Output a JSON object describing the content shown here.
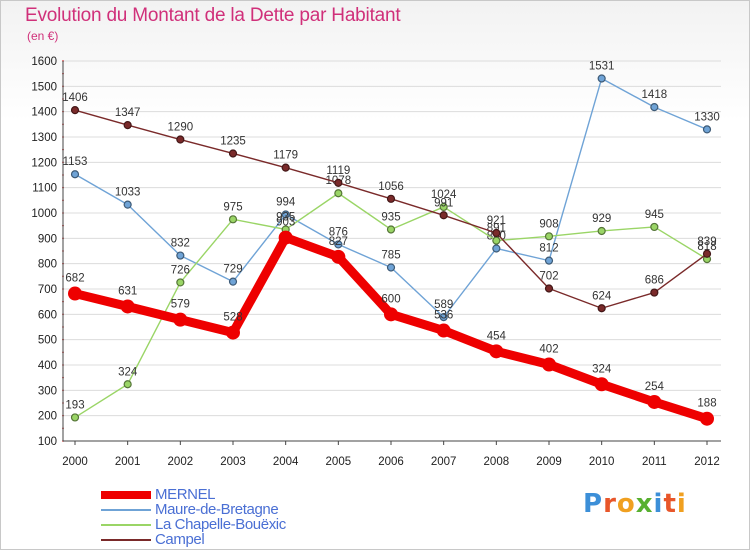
{
  "title": "Evolution du Montant de la Dette par Habitant",
  "subtitle": "(en €)",
  "brand": {
    "letters": [
      {
        "ch": "P",
        "color": "#3c8fd8"
      },
      {
        "ch": "r",
        "color": "#e8562a"
      },
      {
        "ch": "o",
        "color": "#f0a020"
      },
      {
        "ch": "x",
        "color": "#58b030"
      },
      {
        "ch": "i",
        "color": "#3c8fd8"
      },
      {
        "ch": "t",
        "color": "#e8562a"
      },
      {
        "ch": "i",
        "color": "#f0a020"
      }
    ]
  },
  "chart_data": {
    "type": "line",
    "title": "Evolution du Montant de la Dette par Habitant",
    "ylabel": "(en €)",
    "ylim": [
      100,
      1600
    ],
    "yticks": [
      100,
      200,
      300,
      400,
      500,
      600,
      700,
      800,
      900,
      1000,
      1100,
      1200,
      1300,
      1400,
      1500,
      1600
    ],
    "x": [
      "2000",
      "2001",
      "2002",
      "2003",
      "2004",
      "2005",
      "2006",
      "2007",
      "2008",
      "2009",
      "2010",
      "2011",
      "2012"
    ],
    "grid": "horizontal",
    "legend_placement": "bottom-left",
    "series": [
      {
        "name": "MERNEL",
        "color": "#ee0000",
        "emphasis": true,
        "values": [
          682,
          631,
          579,
          528,
          903,
          827,
          600,
          536,
          454,
          402,
          324,
          254,
          188
        ]
      },
      {
        "name": "Maure-de-Bretagne",
        "color": "#6fa3d6",
        "emphasis": false,
        "values": [
          1153,
          1033,
          832,
          729,
          994,
          876,
          785,
          589,
          860,
          812,
          1531,
          1418,
          1330
        ]
      },
      {
        "name": "La Chapelle-Bouëxic",
        "color": "#9ad566",
        "emphasis": false,
        "values": [
          193,
          324,
          726,
          975,
          935,
          1078,
          935,
          1024,
          891,
          908,
          929,
          945,
          818
        ]
      },
      {
        "name": "Campel",
        "color": "#7a2a2a",
        "emphasis": false,
        "values": [
          1406,
          1347,
          1290,
          1235,
          1179,
          1119,
          1056,
          991,
          921,
          702,
          624,
          686,
          839
        ]
      }
    ]
  }
}
